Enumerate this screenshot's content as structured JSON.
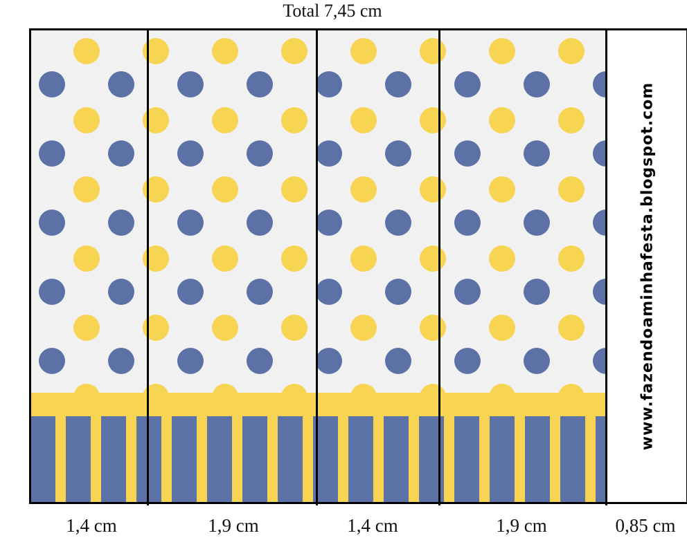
{
  "header": {
    "total_label": "Total 7,45 cm"
  },
  "dimensions": [
    {
      "label": "1,4 cm"
    },
    {
      "label": "1,9 cm"
    },
    {
      "label": "1,4 cm"
    },
    {
      "label": "1,9 cm"
    },
    {
      "label": "0,85 cm"
    }
  ],
  "flap": {
    "site_text": "www.fazendoaminhafesta.blogspot.com"
  },
  "colors": {
    "background": "#f1f1f1",
    "dot_yellow": "#f8d453",
    "dot_blue": "#5c72a7",
    "stripe_yellow": "#f8d453",
    "stripe_blue": "#5c72a7",
    "border": "#000000"
  }
}
